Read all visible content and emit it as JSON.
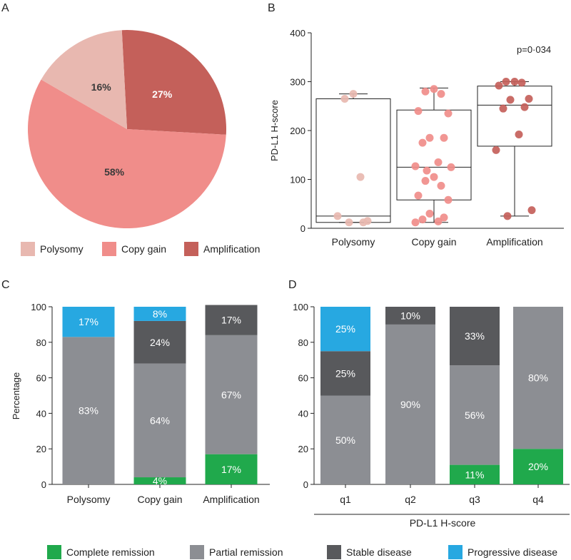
{
  "colors": {
    "polysomy": "#e8b8b0",
    "copy_gain": "#f08d8a",
    "amplification": "#c4605a",
    "complete_remission": "#20a94c",
    "partial_remission": "#8c8e93",
    "stable_disease": "#58595c",
    "progressive_disease": "#27a8e1",
    "axis": "#222222"
  },
  "panels": {
    "A": "A",
    "B": "B",
    "C": "C",
    "D": "D"
  },
  "legend_top": [
    "Polysomy",
    "Copy gain",
    "Amplification"
  ],
  "legend_bottom": [
    "Complete remission",
    "Partial remission",
    "Stable disease",
    "Progressive disease"
  ],
  "chart_data": [
    {
      "panel": "A",
      "type": "pie",
      "labels": [
        "Polysomy",
        "Copy gain",
        "Amplification"
      ],
      "values": [
        16,
        58,
        27
      ],
      "value_labels": [
        "16%",
        "58%",
        "27%"
      ]
    },
    {
      "panel": "B",
      "type": "scatter",
      "ylabel": "PD-L1 H-score",
      "ylim": [
        0,
        400
      ],
      "yticks": [
        0,
        100,
        200,
        300,
        400
      ],
      "categories": [
        "Polysomy",
        "Copy gain",
        "Amplification"
      ],
      "annotation": "p=0·034",
      "boxes": [
        {
          "min": 12,
          "q1": 12,
          "median": 25,
          "q3": 265,
          "max": 275
        },
        {
          "min": 12,
          "q1": 58,
          "median": 125,
          "q3": 242,
          "max": 287
        },
        {
          "min": 25,
          "q1": 168,
          "median": 252,
          "q3": 291,
          "max": 300
        }
      ],
      "points": [
        [
          275,
          265,
          105,
          25,
          15,
          12,
          12
        ],
        [
          285,
          280,
          275,
          240,
          235,
          185,
          185,
          175,
          135,
          127,
          125,
          118,
          105,
          97,
          87,
          67,
          58,
          30,
          22,
          18,
          14,
          12
        ],
        [
          300,
          300,
          298,
          292,
          265,
          263,
          248,
          245,
          192,
          160,
          37,
          25
        ]
      ]
    },
    {
      "panel": "C",
      "type": "bar",
      "stacked": true,
      "ylabel": "Percentage",
      "ylim": [
        0,
        100
      ],
      "yticks": [
        0,
        20,
        40,
        60,
        80,
        100
      ],
      "categories": [
        "Polysomy",
        "Copy gain",
        "Amplification"
      ],
      "series": [
        {
          "name": "Complete remission",
          "values": [
            0,
            4,
            17
          ],
          "labels": [
            "",
            "4%",
            "17%"
          ]
        },
        {
          "name": "Partial remission",
          "values": [
            83,
            64,
            67
          ],
          "labels": [
            "83%",
            "64%",
            "67%"
          ]
        },
        {
          "name": "Stable disease",
          "values": [
            0,
            24,
            17
          ],
          "labels": [
            "",
            "24%",
            "17%"
          ]
        },
        {
          "name": "Progressive disease",
          "values": [
            17,
            8,
            0
          ],
          "labels": [
            "17%",
            "8%",
            ""
          ]
        }
      ]
    },
    {
      "panel": "D",
      "type": "bar",
      "stacked": true,
      "xlabel": "PD-L1 H-score",
      "ylim": [
        0,
        100
      ],
      "yticks": [
        0,
        20,
        40,
        60,
        80,
        100
      ],
      "categories": [
        "q1",
        "q2",
        "q3",
        "q4"
      ],
      "series": [
        {
          "name": "Complete remission",
          "values": [
            0,
            0,
            11,
            20
          ],
          "labels": [
            "",
            "",
            "11%",
            "20%"
          ]
        },
        {
          "name": "Partial remission",
          "values": [
            50,
            90,
            56,
            80
          ],
          "labels": [
            "50%",
            "90%",
            "56%",
            "80%"
          ]
        },
        {
          "name": "Stable disease",
          "values": [
            25,
            10,
            33,
            0
          ],
          "labels": [
            "25%",
            "10%",
            "33%",
            ""
          ]
        },
        {
          "name": "Progressive disease",
          "values": [
            25,
            0,
            0,
            0
          ],
          "labels": [
            "25%",
            "",
            "",
            ""
          ]
        }
      ]
    }
  ]
}
